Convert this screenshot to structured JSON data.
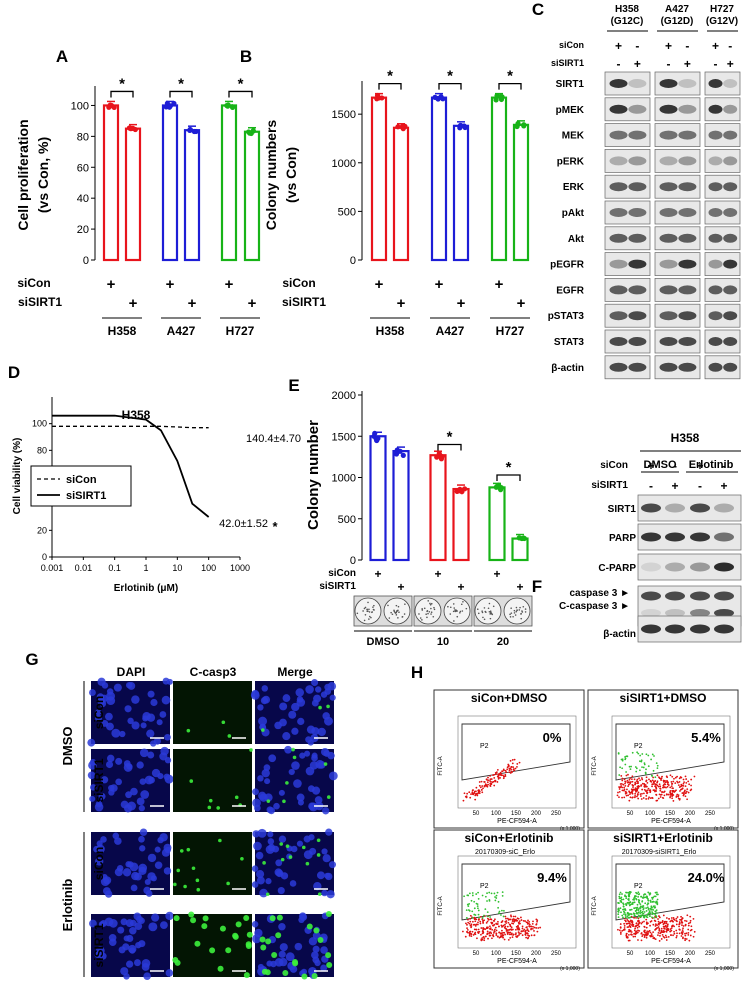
{
  "panel_labels": {
    "a": "A",
    "b": "B",
    "c": "C",
    "d": "D",
    "e": "E",
    "f": "F",
    "g": "G",
    "h": "H"
  },
  "treat": {
    "sicon": "siCon",
    "sisirt1": "siSIRT1",
    "plus": "+",
    "minus": "-",
    "star": "*"
  },
  "cells": {
    "h358": "H358",
    "a427": "A427",
    "h727": "H727"
  },
  "panel_a": {
    "ylabel_1": "Cell proliferation",
    "ylabel_2": "(vs Con, %)",
    "ticks": [
      "0",
      "20",
      "40",
      "60",
      "80",
      "100"
    ]
  },
  "panel_b": {
    "ylabel_1": "Colony numbers",
    "ylabel_2": "(vs Con)",
    "ticks": [
      "0",
      "500",
      "1000",
      "1500"
    ]
  },
  "panel_c": {
    "headers": [
      {
        "line1": "H358",
        "line2": "(G12C)"
      },
      {
        "line1": "A427",
        "line2": "(G12D)"
      },
      {
        "line1": "H727",
        "line2": "(G12V)"
      }
    ],
    "rows": [
      "SIRT1",
      "pMEK",
      "MEK",
      "pERK",
      "ERK",
      "pAkt",
      "Akt",
      "pEGFR",
      "EGFR",
      "pSTAT3",
      "STAT3",
      "β-actin"
    ]
  },
  "panel_d": {
    "title": "H358",
    "ylabel": "Cell viability (%)",
    "xlabel": "Erlotinib (μM)",
    "ticks_y": [
      "0",
      "20",
      "40",
      "60",
      "80",
      "100"
    ],
    "ticks_x": [
      "0.001",
      "0.01",
      "0.1",
      "1",
      "10",
      "100",
      "1000"
    ],
    "ann_sicon": "140.4±4.70",
    "ann_sisirt1": "42.0±1.52"
  },
  "panel_e": {
    "ylabel": "Colony number",
    "ticks": [
      "0",
      "500",
      "1000",
      "1500",
      "2000"
    ],
    "groups": [
      "DMSO",
      "10",
      "20"
    ]
  },
  "panel_f": {
    "title": "H358",
    "col_dmso": "DMSO",
    "col_erlo": "Erlotinib",
    "rows": [
      "SIRT1",
      "PARP",
      "C-PARP",
      "caspase 3 ►",
      "C-caspase 3 ►",
      "β-actin"
    ]
  },
  "panel_g": {
    "cols": [
      "DAPI",
      "C-casp3",
      "Merge"
    ],
    "groups": [
      "DMSO",
      "Erlotinib"
    ]
  },
  "panel_h": {
    "plots": [
      {
        "title": "siCon+DMSO",
        "percent": "0%",
        "subtitle": ""
      },
      {
        "title": "siSIRT1+DMSO",
        "percent": "5.4%",
        "subtitle": ""
      },
      {
        "title": "siCon+Erlotinib",
        "percent": "9.4%",
        "subtitle": "20170309-siC_Erlo"
      },
      {
        "title": "siSIRT1+Erlotinib",
        "percent": "24.0%",
        "subtitle": "20170309-siSIRT1_Erlo"
      }
    ],
    "gate": "P2",
    "xaxis": "PE-CF594-A",
    "yaxis": "FITC-A",
    "xunit": "(x 1,000)",
    "xticks": [
      "50",
      "100",
      "150",
      "200",
      "250"
    ]
  },
  "colors": {
    "red": "#e8141c",
    "blue": "#1d1dd6",
    "green": "#17b317"
  },
  "chart_data": [
    {
      "panel": "A",
      "type": "bar",
      "categories": [
        "H358 siCon",
        "H358 siSIRT1",
        "A427 siCon",
        "A427 siSIRT1",
        "H727 siCon",
        "H727 siSIRT1"
      ],
      "values": [
        100,
        85,
        100,
        84,
        100,
        83
      ],
      "ylim": [
        0,
        110
      ]
    },
    {
      "panel": "B",
      "type": "bar",
      "categories": [
        "H358 siCon",
        "H358 siSIRT1",
        "A427 siCon",
        "A427 siSIRT1",
        "H727 siCon",
        "H727 siSIRT1"
      ],
      "values": [
        1670,
        1360,
        1670,
        1380,
        1670,
        1390
      ],
      "ylim": [
        0,
        1800
      ]
    },
    {
      "panel": "D",
      "type": "line",
      "x": [
        0.001,
        0.01,
        0.1,
        1,
        3,
        10,
        30,
        100
      ],
      "series": [
        {
          "name": "siCon",
          "values": [
            98,
            98,
            98,
            98,
            98,
            97.5,
            97,
            97
          ]
        },
        {
          "name": "siSIRT1",
          "values": [
            106,
            106,
            106,
            103,
            95,
            72,
            40,
            30
          ]
        }
      ],
      "xlog": true,
      "ylim": [
        0,
        120
      ]
    },
    {
      "panel": "E",
      "type": "bar",
      "categories": [
        "DMSO siCon",
        "DMSO siSIRT1",
        "10 siCon",
        "10 siSIRT1",
        "20 siCon",
        "20 siSIRT1"
      ],
      "values": [
        1500,
        1320,
        1270,
        860,
        880,
        260
      ],
      "ylim": [
        0,
        2000
      ]
    }
  ]
}
